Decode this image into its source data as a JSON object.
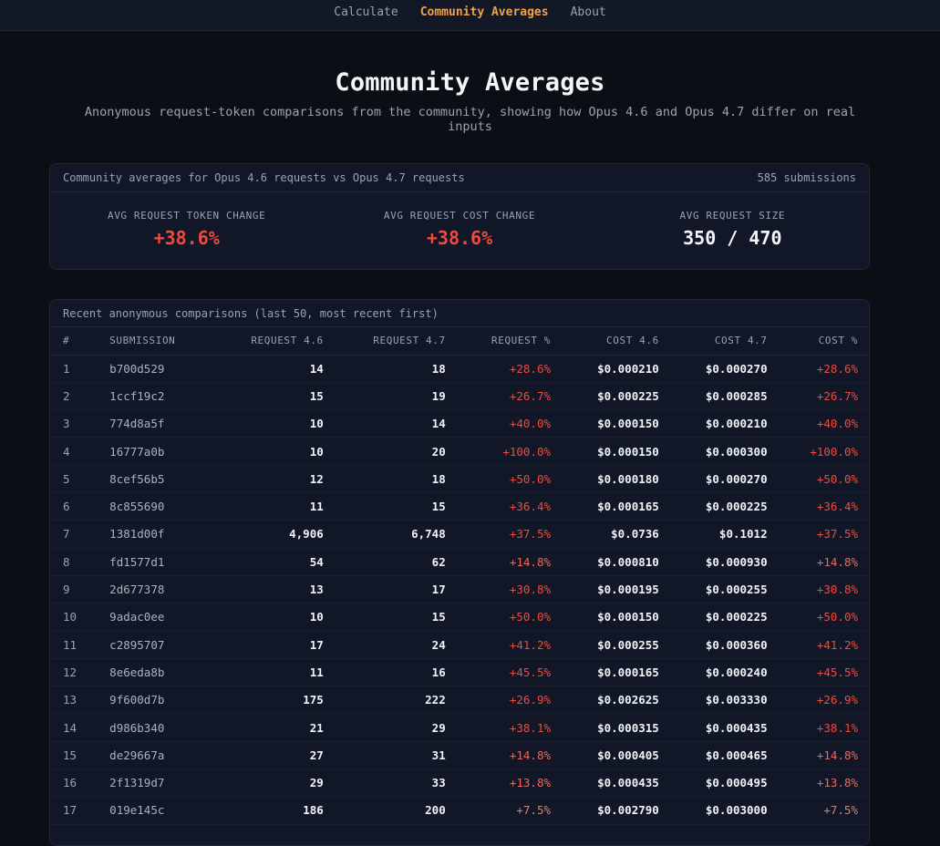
{
  "nav": {
    "items": [
      {
        "label": "Calculate",
        "active": false
      },
      {
        "label": "Community Averages",
        "active": true
      },
      {
        "label": "About",
        "active": false
      }
    ]
  },
  "page": {
    "title": "Community Averages",
    "subtitle": "Anonymous request-token comparisons from the community, showing how Opus 4.6 and Opus 4.7 differ on real inputs"
  },
  "summary": {
    "caption": "Community averages for Opus 4.6 requests vs Opus 4.7 requests",
    "count": "585 submissions",
    "stats": [
      {
        "label": "AVG REQUEST TOKEN CHANGE",
        "value": "+38.6%"
      },
      {
        "label": "AVG REQUEST COST CHANGE",
        "value": "+38.6%"
      },
      {
        "label": "AVG REQUEST SIZE",
        "value": "350 / 470"
      }
    ]
  },
  "table": {
    "caption": "Recent anonymous comparisons (last 50, most recent first)",
    "columns": [
      "#",
      "SUBMISSION",
      "REQUEST 4.6",
      "REQUEST 4.7",
      "REQUEST %",
      "COST 4.6",
      "COST 4.7",
      "COST %"
    ],
    "rows": [
      [
        "1",
        "b700d529",
        "14",
        "18",
        "+28.6%",
        "$0.000210",
        "$0.000270",
        "+28.6%"
      ],
      [
        "2",
        "1ccf19c2",
        "15",
        "19",
        "+26.7%",
        "$0.000225",
        "$0.000285",
        "+26.7%"
      ],
      [
        "3",
        "774d8a5f",
        "10",
        "14",
        "+40.0%",
        "$0.000150",
        "$0.000210",
        "+40.0%"
      ],
      [
        "4",
        "16777a0b",
        "10",
        "20",
        "+100.0%",
        "$0.000150",
        "$0.000300",
        "+100.0%"
      ],
      [
        "5",
        "8cef56b5",
        "12",
        "18",
        "+50.0%",
        "$0.000180",
        "$0.000270",
        "+50.0%"
      ],
      [
        "6",
        "8c855690",
        "11",
        "15",
        "+36.4%",
        "$0.000165",
        "$0.000225",
        "+36.4%"
      ],
      [
        "7",
        "1381d00f",
        "4,906",
        "6,748",
        "+37.5%",
        "$0.0736",
        "$0.1012",
        "+37.5%"
      ],
      [
        "8",
        "fd1577d1",
        "54",
        "62",
        "+14.8%",
        "$0.000810",
        "$0.000930",
        "+14.8%"
      ],
      [
        "9",
        "2d677378",
        "13",
        "17",
        "+30.8%",
        "$0.000195",
        "$0.000255",
        "+30.8%"
      ],
      [
        "10",
        "9adac0ee",
        "10",
        "15",
        "+50.0%",
        "$0.000150",
        "$0.000225",
        "+50.0%"
      ],
      [
        "11",
        "c2895707",
        "17",
        "24",
        "+41.2%",
        "$0.000255",
        "$0.000360",
        "+41.2%"
      ],
      [
        "12",
        "8e6eda8b",
        "11",
        "16",
        "+45.5%",
        "$0.000165",
        "$0.000240",
        "+45.5%"
      ],
      [
        "13",
        "9f600d7b",
        "175",
        "222",
        "+26.9%",
        "$0.002625",
        "$0.003330",
        "+26.9%"
      ],
      [
        "14",
        "d986b340",
        "21",
        "29",
        "+38.1%",
        "$0.000315",
        "$0.000435",
        "+38.1%"
      ],
      [
        "15",
        "de29667a",
        "27",
        "31",
        "+14.8%",
        "$0.000405",
        "$0.000465",
        "+14.8%"
      ],
      [
        "16",
        "2f1319d7",
        "29",
        "33",
        "+13.8%",
        "$0.000435",
        "$0.000495",
        "+13.8%"
      ],
      [
        "17",
        "019e145c",
        "186",
        "200",
        "+7.5%",
        "$0.002790",
        "$0.003000",
        "+7.5%"
      ]
    ]
  },
  "colors": {
    "accent": "#f0a14a",
    "negative_strong": "#ef4a3e",
    "negative_mid": "#e86a5f",
    "negative_soft": "#c9867e",
    "background": "#0b0e14",
    "card": "#111726"
  }
}
